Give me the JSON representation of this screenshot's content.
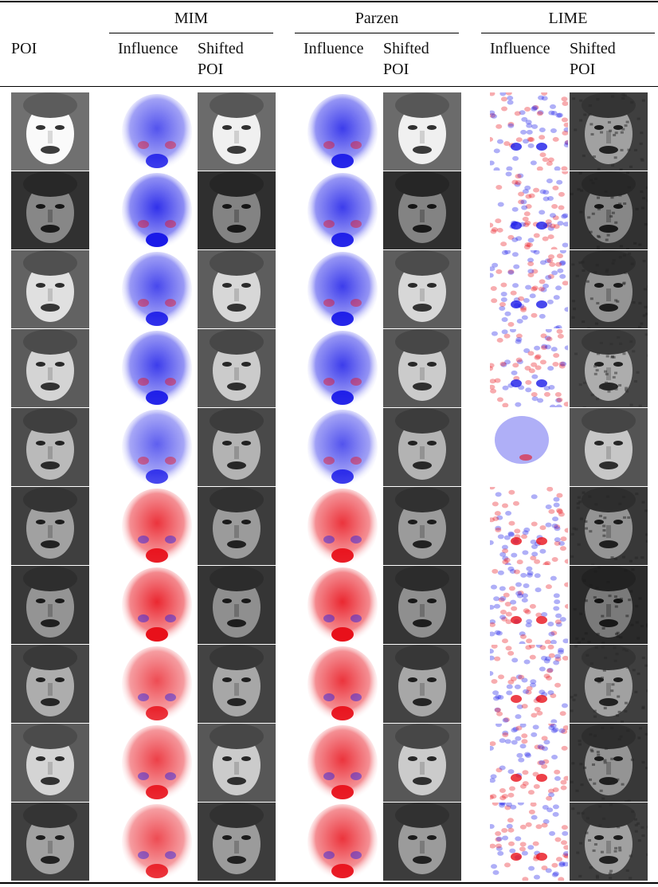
{
  "table": {
    "groups": [
      {
        "label": "MIM"
      },
      {
        "label": "Parzen"
      },
      {
        "label": "LIME"
      }
    ],
    "columns": {
      "poi": "POI",
      "influence": "Influence",
      "shifted": "Shifted POI"
    },
    "colors": {
      "positive": "#e8101a",
      "negative": "#1a1ae8",
      "neutral": "#ffffff"
    },
    "rows": [
      {
        "poi_tone": 0.8,
        "mim_sign": "negative",
        "mim_strength": 0.75,
        "parzen_sign": "negative",
        "parzen_strength": 0.85,
        "lime_texture": "noisy",
        "lime_tone": 0.45
      },
      {
        "poi_tone": 0.35,
        "mim_sign": "negative",
        "mim_strength": 0.9,
        "parzen_sign": "negative",
        "parzen_strength": 0.85,
        "lime_texture": "noisy",
        "lime_tone": 0.35
      },
      {
        "poi_tone": 0.7,
        "mim_sign": "negative",
        "mim_strength": 0.8,
        "parzen_sign": "negative",
        "parzen_strength": 0.85,
        "lime_texture": "noisy",
        "lime_tone": 0.4
      },
      {
        "poi_tone": 0.65,
        "mim_sign": "negative",
        "mim_strength": 0.85,
        "parzen_sign": "negative",
        "parzen_strength": 0.85,
        "lime_texture": "noisy",
        "lime_tone": 0.5
      },
      {
        "poi_tone": 0.55,
        "mim_sign": "negative",
        "mim_strength": 0.7,
        "parzen_sign": "negative",
        "parzen_strength": 0.75,
        "lime_texture": "smooth",
        "lime_tone": 0.6
      },
      {
        "poi_tone": 0.45,
        "mim_sign": "positive",
        "mim_strength": 0.85,
        "parzen_sign": "positive",
        "parzen_strength": 0.85,
        "lime_texture": "noisy",
        "lime_tone": 0.4
      },
      {
        "poi_tone": 0.4,
        "mim_sign": "positive",
        "mim_strength": 0.9,
        "parzen_sign": "positive",
        "parzen_strength": 0.9,
        "lime_texture": "noisy",
        "lime_tone": 0.3
      },
      {
        "poi_tone": 0.5,
        "mim_sign": "positive",
        "mim_strength": 0.75,
        "parzen_sign": "positive",
        "parzen_strength": 0.85,
        "lime_texture": "noisy",
        "lime_tone": 0.45
      },
      {
        "poi_tone": 0.65,
        "mim_sign": "positive",
        "mim_strength": 0.8,
        "parzen_sign": "positive",
        "parzen_strength": 0.85,
        "lime_texture": "noisy",
        "lime_tone": 0.4
      },
      {
        "poi_tone": 0.45,
        "mim_sign": "positive",
        "mim_strength": 0.75,
        "parzen_sign": "positive",
        "parzen_strength": 0.85,
        "lime_texture": "noisy",
        "lime_tone": 0.45
      }
    ]
  }
}
